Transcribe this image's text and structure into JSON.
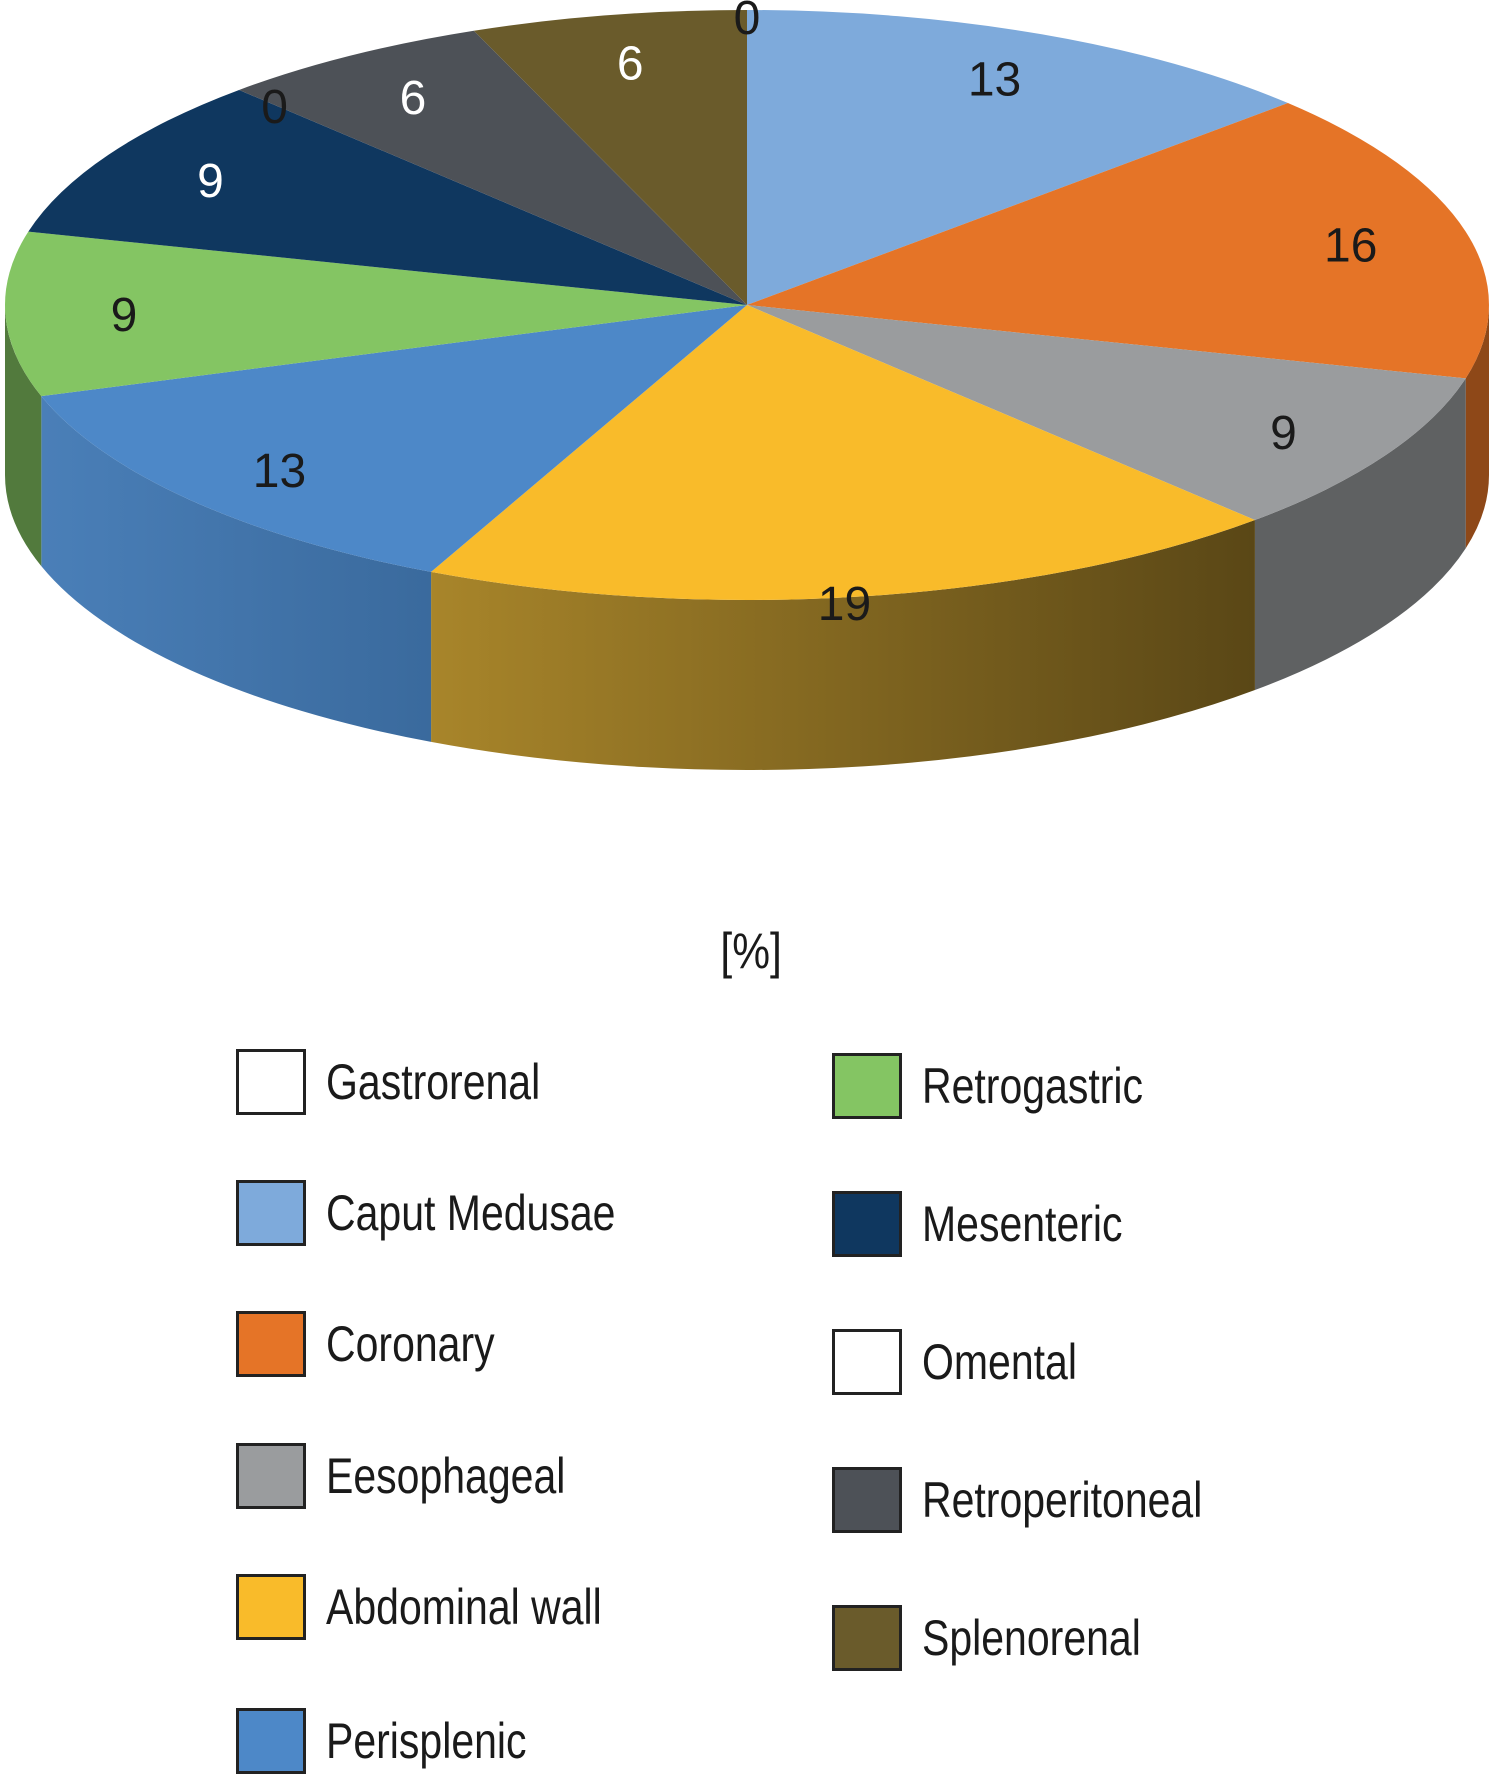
{
  "chart_data": {
    "type": "pie",
    "unit_label": "[%]",
    "categories": [
      "Gastrorenal",
      "Caput Medusae",
      "Coronary",
      "Eesophageal",
      "Abdominal wall",
      "Perisplenic",
      "Retrogastric",
      "Mesenteric",
      "Omental",
      "Retroperitoneal",
      "Splenorenal"
    ],
    "values": [
      0,
      13,
      16,
      9,
      19,
      13,
      9,
      9,
      0,
      6,
      6
    ],
    "colors": [
      "#ffffff",
      "#7eaadb",
      "#e57427",
      "#9a9c9e",
      "#f9bb2a",
      "#4d88c8",
      "#84c563",
      "#0f375f",
      "#ffffff",
      "#4d5157",
      "#6a5b2b"
    ]
  },
  "legend": {
    "left": [
      "Gastrorenal",
      "Caput Medusae",
      "Coronary",
      "Eesophageal",
      "Abdominal wall",
      "Perisplenic"
    ],
    "right": [
      "Retrogastric",
      "Mesenteric",
      "Omental",
      "Retroperitoneal",
      "Splenorenal"
    ]
  }
}
